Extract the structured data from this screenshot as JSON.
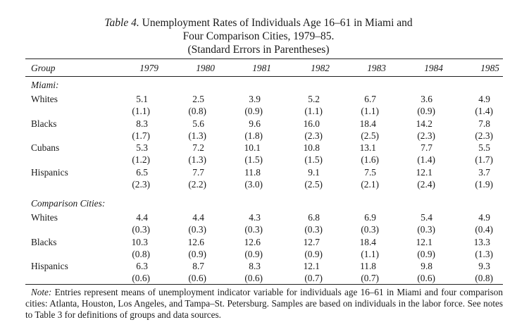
{
  "title": {
    "label": "Table 4.",
    "line1": "Unemployment Rates of Individuals Age 16–61 in Miami and",
    "line2": "Four Comparison Cities, 1979–85.",
    "line3": "(Standard Errors in Parentheses)"
  },
  "header": {
    "group": "Group",
    "years": [
      "1979",
      "1980",
      "1981",
      "1982",
      "1983",
      "1984",
      "1985"
    ]
  },
  "sections": [
    {
      "label": "Miami:",
      "rows": [
        {
          "group": "Whites",
          "values": [
            "5.1",
            "2.5",
            "3.9",
            "5.2",
            "6.7",
            "3.6",
            "4.9"
          ],
          "se": [
            "(1.1)",
            "(0.8)",
            "(0.9)",
            "(1.1)",
            "(1.1)",
            "(0.9)",
            "(1.4)"
          ]
        },
        {
          "group": "Blacks",
          "values": [
            "8.3",
            "5.6",
            "9.6",
            "16.0",
            "18.4",
            "14.2",
            "7.8"
          ],
          "se": [
            "(1.7)",
            "(1.3)",
            "(1.8)",
            "(2.3)",
            "(2.5)",
            "(2.3)",
            "(2.3)"
          ]
        },
        {
          "group": "Cubans",
          "values": [
            "5.3",
            "7.2",
            "10.1",
            "10.8",
            "13.1",
            "7.7",
            "5.5"
          ],
          "se": [
            "(1.2)",
            "(1.3)",
            "(1.5)",
            "(1.5)",
            "(1.6)",
            "(1.4)",
            "(1.7)"
          ]
        },
        {
          "group": "Hispanics",
          "values": [
            "6.5",
            "7.7",
            "11.8",
            "9.1",
            "7.5",
            "12.1",
            "3.7"
          ],
          "se": [
            "(2.3)",
            "(2.2)",
            "(3.0)",
            "(2.5)",
            "(2.1)",
            "(2.4)",
            "(1.9)"
          ]
        }
      ]
    },
    {
      "label": "Comparison Cities:",
      "rows": [
        {
          "group": "Whites",
          "values": [
            "4.4",
            "4.4",
            "4.3",
            "6.8",
            "6.9",
            "5.4",
            "4.9"
          ],
          "se": [
            "(0.3)",
            "(0.3)",
            "(0.3)",
            "(0.3)",
            "(0.3)",
            "(0.3)",
            "(0.4)"
          ]
        },
        {
          "group": "Blacks",
          "values": [
            "10.3",
            "12.6",
            "12.6",
            "12.7",
            "18.4",
            "12.1",
            "13.3"
          ],
          "se": [
            "(0.8)",
            "(0.9)",
            "(0.9)",
            "(0.9)",
            "(1.1)",
            "(0.9)",
            "(1.3)"
          ]
        },
        {
          "group": "Hispanics",
          "values": [
            "6.3",
            "8.7",
            "8.3",
            "12.1",
            "11.8",
            "9.8",
            "9.3"
          ],
          "se": [
            "(0.6)",
            "(0.6)",
            "(0.6)",
            "(0.7)",
            "(0.7)",
            "(0.6)",
            "(0.8)"
          ]
        }
      ]
    }
  ],
  "note": {
    "label": "Note:",
    "text": "Entries represent means of unemployment indicator variable for individuals age 16–61 in Miami and four comparison cities: Atlanta, Houston, Los Angeles, and Tampa–St. Petersburg. Samples are based on individuals in the labor force. See notes to Table 3 for definitions of groups and data sources."
  }
}
